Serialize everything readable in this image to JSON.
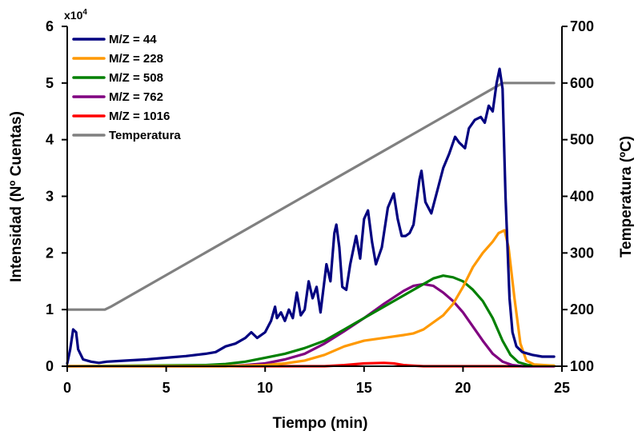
{
  "chart_data": {
    "type": "line",
    "xlabel": "Tiempo (min)",
    "ylabel": "Intensidad (Nº Cuentas)",
    "y2label": "Temperatura (ºC)",
    "y_multiplier": "x10",
    "y_multiplier_exp": "4",
    "xlim": [
      0,
      25
    ],
    "ylim": [
      0,
      6
    ],
    "y2lim": [
      100,
      700
    ],
    "x_ticks": [
      "0",
      "5",
      "10",
      "15",
      "20",
      "25"
    ],
    "y_ticks": [
      "0",
      "1",
      "2",
      "3",
      "4",
      "5",
      "6"
    ],
    "y2_ticks": [
      "100",
      "200",
      "300",
      "400",
      "500",
      "600",
      "700"
    ],
    "grid": false,
    "legend_position": "top-left",
    "series": [
      {
        "name": "M/Z = 44",
        "color": "#000080",
        "axis": "left",
        "points": [
          [
            0,
            0.05
          ],
          [
            0.15,
            0.3
          ],
          [
            0.3,
            0.65
          ],
          [
            0.45,
            0.6
          ],
          [
            0.55,
            0.3
          ],
          [
            0.8,
            0.12
          ],
          [
            1.2,
            0.08
          ],
          [
            1.6,
            0.06
          ],
          [
            2,
            0.08
          ],
          [
            3,
            0.1
          ],
          [
            4,
            0.12
          ],
          [
            5,
            0.15
          ],
          [
            6,
            0.18
          ],
          [
            7,
            0.22
          ],
          [
            7.5,
            0.25
          ],
          [
            8,
            0.35
          ],
          [
            8.5,
            0.4
          ],
          [
            9,
            0.5
          ],
          [
            9.3,
            0.6
          ],
          [
            9.6,
            0.5
          ],
          [
            10,
            0.6
          ],
          [
            10.3,
            0.8
          ],
          [
            10.5,
            1.05
          ],
          [
            10.6,
            0.85
          ],
          [
            10.8,
            0.95
          ],
          [
            11,
            0.8
          ],
          [
            11.2,
            1.0
          ],
          [
            11.4,
            0.85
          ],
          [
            11.6,
            1.3
          ],
          [
            11.8,
            0.9
          ],
          [
            12,
            1.0
          ],
          [
            12.2,
            1.5
          ],
          [
            12.4,
            1.2
          ],
          [
            12.6,
            1.4
          ],
          [
            12.8,
            0.95
          ],
          [
            13.1,
            1.8
          ],
          [
            13.3,
            1.5
          ],
          [
            13.5,
            2.35
          ],
          [
            13.6,
            2.5
          ],
          [
            13.75,
            2.1
          ],
          [
            13.9,
            1.4
          ],
          [
            14.1,
            1.35
          ],
          [
            14.3,
            1.8
          ],
          [
            14.6,
            2.3
          ],
          [
            14.8,
            1.9
          ],
          [
            15,
            2.6
          ],
          [
            15.2,
            2.75
          ],
          [
            15.4,
            2.2
          ],
          [
            15.6,
            1.8
          ],
          [
            15.9,
            2.1
          ],
          [
            16.2,
            2.8
          ],
          [
            16.5,
            3.05
          ],
          [
            16.7,
            2.6
          ],
          [
            16.9,
            2.3
          ],
          [
            17.1,
            2.3
          ],
          [
            17.3,
            2.35
          ],
          [
            17.5,
            2.5
          ],
          [
            17.8,
            3.3
          ],
          [
            17.9,
            3.45
          ],
          [
            18.1,
            2.9
          ],
          [
            18.4,
            2.7
          ],
          [
            18.7,
            3.1
          ],
          [
            19,
            3.5
          ],
          [
            19.3,
            3.75
          ],
          [
            19.6,
            4.05
          ],
          [
            19.8,
            3.95
          ],
          [
            20.1,
            3.85
          ],
          [
            20.3,
            4.2
          ],
          [
            20.6,
            4.35
          ],
          [
            20.9,
            4.4
          ],
          [
            21.1,
            4.3
          ],
          [
            21.3,
            4.6
          ],
          [
            21.5,
            4.5
          ],
          [
            21.7,
            5.0
          ],
          [
            21.85,
            5.25
          ],
          [
            22.0,
            4.9
          ],
          [
            22.15,
            3.0
          ],
          [
            22.35,
            1.2
          ],
          [
            22.5,
            0.6
          ],
          [
            22.7,
            0.35
          ],
          [
            23,
            0.25
          ],
          [
            23.5,
            0.2
          ],
          [
            24,
            0.17
          ],
          [
            24.6,
            0.17
          ]
        ]
      },
      {
        "name": "M/Z = 228",
        "color": "#FF9900",
        "axis": "left",
        "points": [
          [
            0,
            0
          ],
          [
            8,
            0
          ],
          [
            10,
            0.02
          ],
          [
            11,
            0.05
          ],
          [
            12,
            0.1
          ],
          [
            13,
            0.2
          ],
          [
            14,
            0.35
          ],
          [
            15,
            0.45
          ],
          [
            16,
            0.5
          ],
          [
            17,
            0.55
          ],
          [
            17.5,
            0.58
          ],
          [
            18,
            0.65
          ],
          [
            19,
            0.9
          ],
          [
            19.5,
            1.1
          ],
          [
            20,
            1.4
          ],
          [
            20.5,
            1.75
          ],
          [
            21,
            2.0
          ],
          [
            21.5,
            2.2
          ],
          [
            21.8,
            2.35
          ],
          [
            22.1,
            2.4
          ],
          [
            22.3,
            2.1
          ],
          [
            22.6,
            1.2
          ],
          [
            22.9,
            0.4
          ],
          [
            23.2,
            0.1
          ],
          [
            23.6,
            0.03
          ],
          [
            24.6,
            0.01
          ]
        ]
      },
      {
        "name": "M/Z = 508",
        "color": "#008000",
        "axis": "left",
        "points": [
          [
            0,
            0
          ],
          [
            7,
            0.02
          ],
          [
            8,
            0.04
          ],
          [
            9,
            0.08
          ],
          [
            10,
            0.15
          ],
          [
            11,
            0.22
          ],
          [
            12,
            0.32
          ],
          [
            13,
            0.45
          ],
          [
            14,
            0.65
          ],
          [
            15,
            0.85
          ],
          [
            16,
            1.05
          ],
          [
            17,
            1.25
          ],
          [
            18,
            1.45
          ],
          [
            18.5,
            1.55
          ],
          [
            19,
            1.6
          ],
          [
            19.5,
            1.57
          ],
          [
            20,
            1.5
          ],
          [
            20.5,
            1.35
          ],
          [
            21,
            1.15
          ],
          [
            21.5,
            0.85
          ],
          [
            22,
            0.45
          ],
          [
            22.4,
            0.2
          ],
          [
            22.8,
            0.07
          ],
          [
            23.3,
            0.02
          ],
          [
            24.6,
            0.01
          ]
        ]
      },
      {
        "name": "M/Z = 762",
        "color": "#800080",
        "axis": "left",
        "points": [
          [
            0,
            0
          ],
          [
            8,
            0
          ],
          [
            9,
            0.02
          ],
          [
            10,
            0.05
          ],
          [
            11,
            0.12
          ],
          [
            12,
            0.22
          ],
          [
            13,
            0.4
          ],
          [
            14,
            0.62
          ],
          [
            15,
            0.85
          ],
          [
            16,
            1.1
          ],
          [
            17,
            1.33
          ],
          [
            17.5,
            1.42
          ],
          [
            18,
            1.45
          ],
          [
            18.5,
            1.42
          ],
          [
            19,
            1.3
          ],
          [
            19.5,
            1.15
          ],
          [
            20,
            0.95
          ],
          [
            20.5,
            0.7
          ],
          [
            21,
            0.45
          ],
          [
            21.5,
            0.22
          ],
          [
            22,
            0.08
          ],
          [
            22.5,
            0.02
          ],
          [
            23,
            0.0
          ],
          [
            24.6,
            0.0
          ]
        ]
      },
      {
        "name": "M/Z = 1016",
        "color": "#FF0000",
        "axis": "left",
        "points": [
          [
            0,
            0
          ],
          [
            13,
            0
          ],
          [
            14,
            0.02
          ],
          [
            15,
            0.05
          ],
          [
            16,
            0.06
          ],
          [
            16.5,
            0.05
          ],
          [
            17,
            0.02
          ],
          [
            17.5,
            0.01
          ],
          [
            18,
            0
          ],
          [
            24.6,
            0
          ]
        ]
      },
      {
        "name": "Temperatura",
        "color": "#808080",
        "axis": "right",
        "points": [
          [
            0,
            200
          ],
          [
            1.9,
            200
          ],
          [
            2.2,
            205
          ],
          [
            22,
            600
          ],
          [
            24.6,
            600
          ]
        ]
      }
    ]
  }
}
